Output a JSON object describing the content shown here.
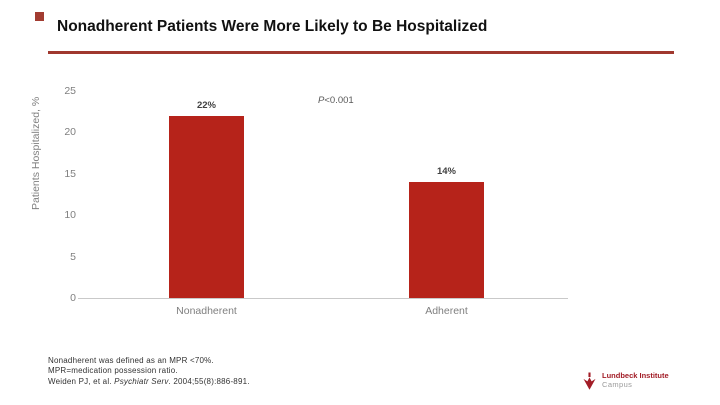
{
  "slide": {
    "title": "Nonadherent Patients Were More Likely to Be Hospitalized",
    "accent_color": "#A23C31"
  },
  "chart_data": {
    "type": "bar",
    "categories": [
      "Nonadherent",
      "Adherent"
    ],
    "values": [
      22,
      14
    ],
    "value_labels": [
      "22%",
      "14%"
    ],
    "title": "",
    "xlabel": "",
    "ylabel": "Patients Hospitalized, %",
    "yticks": [
      0,
      5,
      10,
      15,
      20,
      25
    ],
    "ylim": [
      0,
      25
    ],
    "grid": "off",
    "legend": "none",
    "annotation": "P<0.001",
    "bar_color": "#B6231A",
    "axis_text_color": "#7F7F7F"
  },
  "chart": {
    "pvalue_symbol": "P",
    "pvalue_rest": "<0.001"
  },
  "footnotes": {
    "line1": "Nonadherent was defined as an MPR <70%.",
    "line2": "MPR=medication possession ratio.",
    "line3_prefix": "Weiden PJ, et al. ",
    "line3_journal": "Psychiatr Serv",
    "line3_suffix": ". 2004;55(8):886-891."
  },
  "logo": {
    "name": "Lundbeck Institute",
    "sub": "Campus",
    "color": "#A21C26"
  }
}
